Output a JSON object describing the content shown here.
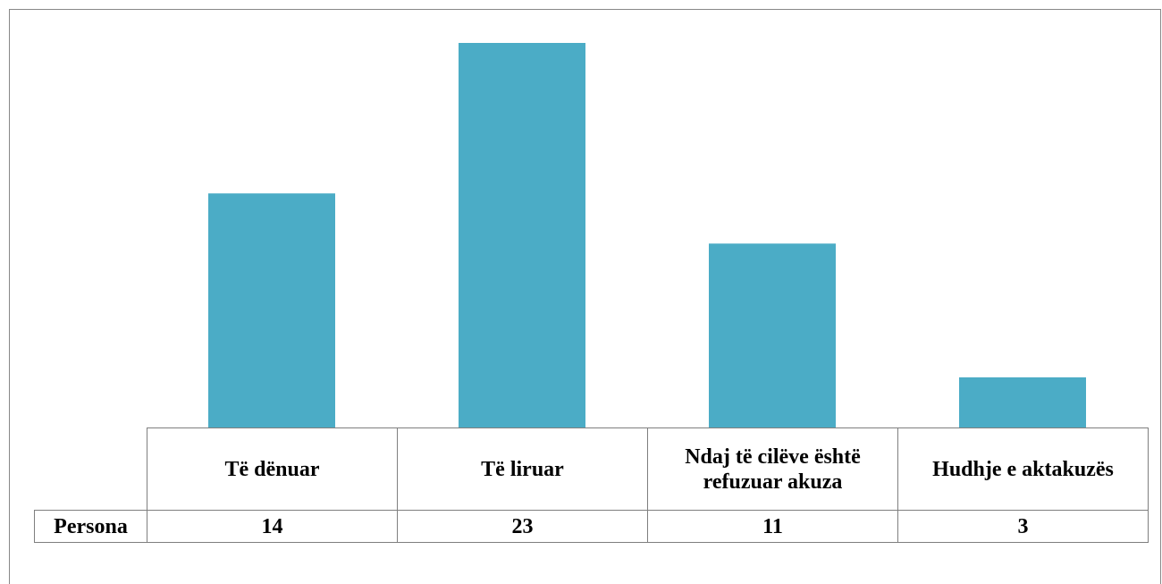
{
  "chart_data": {
    "type": "bar",
    "categories": [
      "Të dënuar",
      "Të liruar",
      "Ndaj të cilëve është refuzuar akuza",
      "Hudhje e aktakuzës"
    ],
    "series": [
      {
        "name": "Persona",
        "color": "#4bacc6",
        "values": [
          14,
          23,
          11,
          3
        ]
      }
    ]
  }
}
